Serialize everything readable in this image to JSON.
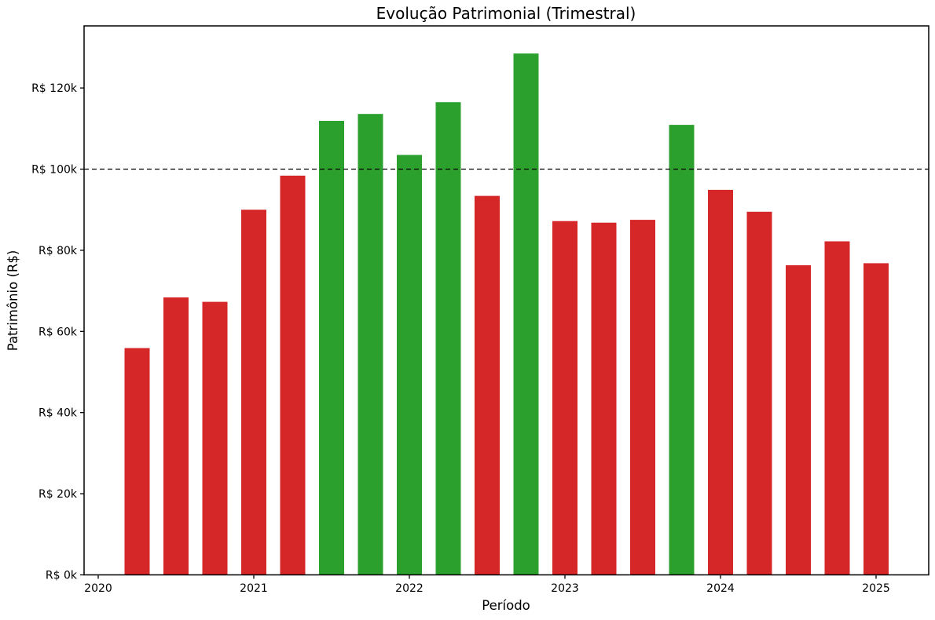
{
  "figure": {
    "title": "Evolução Patrimonial (Trimestral)",
    "xlabel": "Período",
    "ylabel": "Patrimônio (R$)",
    "background": "#ffffff"
  },
  "chart_data": {
    "type": "bar",
    "title": "Evolução Patrimonial (Trimestral)",
    "xlabel": "Período",
    "ylabel": "Patrimônio (R$)",
    "grid": false,
    "legend": false,
    "categories": [
      "2020-T2",
      "2020-T3",
      "2020-T4",
      "2021-T1",
      "2021-T2",
      "2021-T3",
      "2021-T4",
      "2022-T1",
      "2022-T2",
      "2022-T3",
      "2022-T4",
      "2023-T1",
      "2023-T2",
      "2023-T3",
      "2023-T4",
      "2024-T1",
      "2024-T2",
      "2024-T3",
      "2024-T4",
      "2025-T1"
    ],
    "values": [
      55900,
      68400,
      67300,
      90000,
      98400,
      111900,
      113600,
      103500,
      116500,
      93400,
      128500,
      87200,
      86800,
      87500,
      110900,
      94900,
      89500,
      76300,
      82200,
      76800
    ],
    "colors": [
      "#d62728",
      "#d62728",
      "#d62728",
      "#d62728",
      "#d62728",
      "#2ca02c",
      "#2ca02c",
      "#2ca02c",
      "#2ca02c",
      "#d62728",
      "#2ca02c",
      "#d62728",
      "#d62728",
      "#d62728",
      "#2ca02c",
      "#d62728",
      "#d62728",
      "#d62728",
      "#d62728",
      "#d62728"
    ],
    "color_rule": "green #2ca02c when value >= 100000, red #d62728 when below",
    "reference_line": {
      "value": 100000,
      "style": "dashed",
      "color": "#000000"
    },
    "x_tick_labels": [
      "2020",
      "2021",
      "2022",
      "2023",
      "2024",
      "2025"
    ],
    "x_tick_years": [
      2020,
      2021,
      2022,
      2023,
      2024,
      2025
    ],
    "y_tick_labels": [
      "R$ 0k",
      "R$ 20k",
      "R$ 40k",
      "R$ 60k",
      "R$ 80k",
      "R$ 100k",
      "R$ 120k"
    ],
    "y_tick_values": [
      0,
      20000,
      40000,
      60000,
      80000,
      100000,
      120000
    ],
    "ylim": [
      0,
      135300
    ],
    "axis_color": "#000000",
    "legend_position": "none"
  }
}
